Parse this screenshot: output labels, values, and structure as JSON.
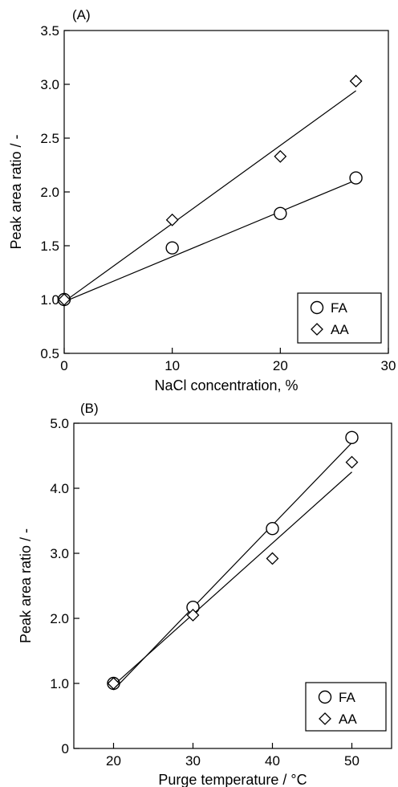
{
  "chart_data": [
    {
      "panel_label": "(A)",
      "type": "scatter",
      "xlabel": "NaCl concentration, %",
      "ylabel": "Peak area ratio / -",
      "xlim": [
        0,
        30
      ],
      "ylim": [
        0.5,
        3.5
      ],
      "xticks": [
        0,
        10,
        20,
        30
      ],
      "yticks": [
        0.5,
        1.0,
        1.5,
        2.0,
        2.5,
        3.0,
        3.5
      ],
      "xtick_labels": [
        "0",
        "10",
        "20",
        "30"
      ],
      "ytick_labels": [
        "0.5",
        "1.0",
        "1.5",
        "2.0",
        "2.5",
        "3.0",
        "3.5"
      ],
      "legend_position": "bottom-right",
      "grid": false,
      "series": [
        {
          "name": "FA",
          "marker": "circle",
          "x": [
            0,
            10,
            20,
            27
          ],
          "y": [
            1.0,
            1.48,
            1.8,
            2.13
          ],
          "fit": {
            "x": [
              0,
              27
            ],
            "y": [
              0.98,
              2.11
            ]
          }
        },
        {
          "name": "AA",
          "marker": "diamond",
          "x": [
            0,
            10,
            20,
            27
          ],
          "y": [
            1.0,
            1.74,
            2.33,
            3.03
          ],
          "fit": {
            "x": [
              0,
              27
            ],
            "y": [
              0.98,
              2.94
            ]
          }
        }
      ]
    },
    {
      "panel_label": "(B)",
      "type": "scatter",
      "xlabel": "Purge temperature /  °C",
      "ylabel": "Peak area ratio / -",
      "xlim": [
        15,
        55
      ],
      "ylim": [
        0,
        5.0
      ],
      "xticks": [
        20,
        30,
        40,
        50
      ],
      "yticks": [
        0,
        1.0,
        2.0,
        3.0,
        4.0,
        5.0
      ],
      "xtick_labels": [
        "20",
        "30",
        "40",
        "50"
      ],
      "ytick_labels": [
        "0",
        "1.0",
        "2.0",
        "3.0",
        "4.0",
        "5.0"
      ],
      "legend_position": "bottom-right",
      "grid": false,
      "series": [
        {
          "name": "FA",
          "marker": "circle",
          "x": [
            20,
            30,
            40,
            50
          ],
          "y": [
            1.0,
            2.17,
            3.38,
            4.78
          ],
          "fit": {
            "x": [
              20,
              50
            ],
            "y": [
              0.9,
              4.7
            ]
          }
        },
        {
          "name": "AA",
          "marker": "diamond",
          "x": [
            20,
            30,
            40,
            50
          ],
          "y": [
            1.0,
            2.05,
            2.92,
            4.4
          ],
          "fit": {
            "x": [
              20,
              50
            ],
            "y": [
              0.97,
              4.25
            ]
          }
        }
      ]
    }
  ]
}
